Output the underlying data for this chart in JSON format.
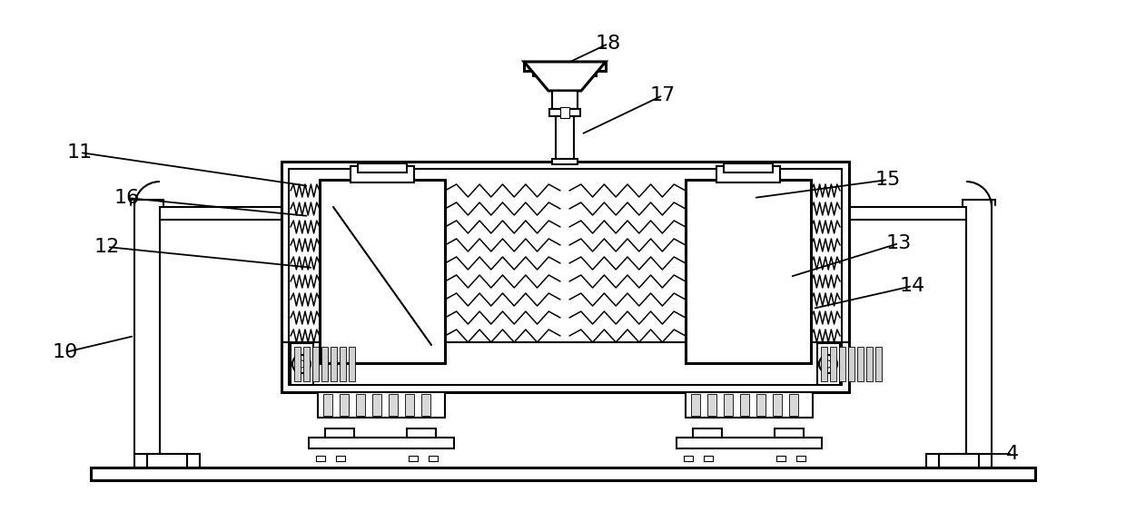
{
  "bg_color": "#ffffff",
  "line_color": "#000000",
  "lw": 1.5,
  "lw2": 2.2,
  "lw3": 1.0,
  "figsize": [
    12.4,
    5.64
  ],
  "dpi": 100,
  "label_fontsize": 16,
  "labels_info": [
    [
      "18",
      670,
      48,
      607,
      78
    ],
    [
      "17",
      730,
      105,
      640,
      148
    ],
    [
      "11",
      88,
      168,
      340,
      205
    ],
    [
      "16",
      140,
      218,
      340,
      238
    ],
    [
      "12",
      118,
      272,
      345,
      295
    ],
    [
      "15",
      978,
      198,
      830,
      218
    ],
    [
      "13",
      990,
      268,
      870,
      305
    ],
    [
      "14",
      1005,
      315,
      895,
      340
    ],
    [
      "10",
      72,
      388,
      148,
      370
    ],
    [
      "4",
      1115,
      500,
      1050,
      500
    ]
  ]
}
